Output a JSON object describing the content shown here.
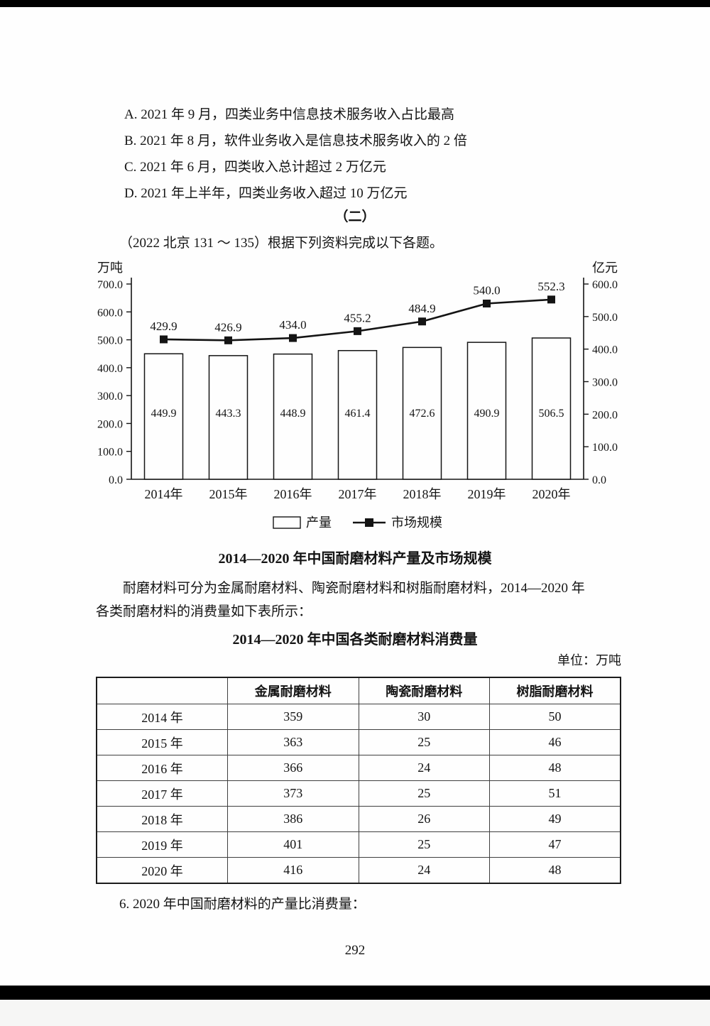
{
  "options": [
    "A. 2021 年 9 月，四类业务中信息技术服务收入占比最高",
    "B. 2021 年 8 月，软件业务收入是信息技术服务收入的 2 倍",
    "C. 2021 年 6 月，四类收入总计超过 2 万亿元",
    "D. 2021 年上半年，四类业务收入超过 10 万亿元"
  ],
  "section": {
    "header": "（二）",
    "source_line": "（2022 北京 131 ～ 135）根据下列资料完成以下各题。"
  },
  "chart_data": {
    "type": "bar+line",
    "title": "2014—2020 年中国耐磨材料产量及市场规模",
    "categories": [
      "2014年",
      "2015年",
      "2016年",
      "2017年",
      "2018年",
      "2019年",
      "2020年"
    ],
    "series": [
      {
        "name": "产量",
        "type": "bar",
        "axis": "left",
        "values": [
          449.9,
          443.3,
          448.9,
          461.4,
          472.6,
          490.9,
          506.5
        ]
      },
      {
        "name": "市场规模",
        "type": "line",
        "axis": "right",
        "values": [
          429.9,
          426.9,
          434.0,
          455.2,
          484.9,
          540.0,
          552.3
        ]
      }
    ],
    "left_axis": {
      "label": "万吨",
      "min": 0,
      "max": 700,
      "step": 100
    },
    "right_axis": {
      "label": "亿元",
      "min": 0,
      "max": 600,
      "step": 100
    },
    "legend_position": "bottom",
    "grid": false
  },
  "paragraph": {
    "line1": "耐磨材料可分为金属耐磨材料、陶瓷耐磨材料和树脂耐磨材料，2014—2020 年",
    "line2": "各类耐磨材料的消费量如下表所示："
  },
  "table": {
    "title": "2014—2020 年中国各类耐磨材料消费量",
    "unit_note": "单位：万吨",
    "headers": [
      "",
      "金属耐磨材料",
      "陶瓷耐磨材料",
      "树脂耐磨材料"
    ],
    "rows": [
      {
        "year": "2014 年",
        "values": [
          "359",
          "30",
          "50"
        ]
      },
      {
        "year": "2015 年",
        "values": [
          "363",
          "25",
          "46"
        ]
      },
      {
        "year": "2016 年",
        "values": [
          "366",
          "24",
          "48"
        ]
      },
      {
        "year": "2017 年",
        "values": [
          "373",
          "25",
          "51"
        ]
      },
      {
        "year": "2018 年",
        "values": [
          "386",
          "26",
          "49"
        ]
      },
      {
        "year": "2019 年",
        "values": [
          "401",
          "25",
          "47"
        ]
      },
      {
        "year": "2020 年",
        "values": [
          "416",
          "24",
          "48"
        ]
      }
    ]
  },
  "question": "6. 2020 年中国耐磨材料的产量比消费量：",
  "page_number": "292"
}
